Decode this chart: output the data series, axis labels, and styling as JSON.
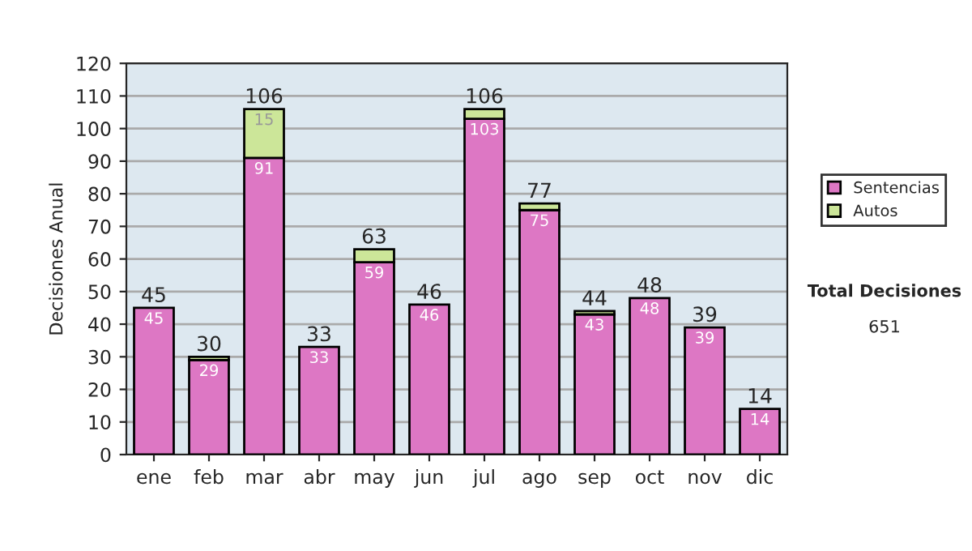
{
  "chart_data": {
    "type": "bar",
    "stacked": true,
    "ylabel": "Decisiones Anual",
    "categories": [
      "ene",
      "feb",
      "mar",
      "abr",
      "may",
      "jun",
      "jul",
      "ago",
      "sep",
      "oct",
      "nov",
      "dic"
    ],
    "series": [
      {
        "name": "Sentencias",
        "color": "#dd77c4",
        "values": [
          45,
          29,
          91,
          33,
          59,
          46,
          103,
          75,
          43,
          48,
          39,
          14
        ],
        "value_labels": [
          "45",
          "29",
          "91",
          "33",
          "59",
          "46",
          "103",
          "75",
          "43",
          "48",
          "39",
          "14"
        ]
      },
      {
        "name": "Autos",
        "color": "#cce699",
        "values": [
          null,
          1,
          15,
          null,
          4,
          null,
          3,
          2,
          1,
          null,
          null,
          null
        ],
        "value_labels": [
          null,
          null,
          "15",
          null,
          null,
          null,
          null,
          null,
          null,
          null,
          null,
          null
        ]
      }
    ],
    "totals": [
      "45",
      "30",
      "106",
      "33",
      "63",
      "46",
      "106",
      "77",
      "44",
      "48",
      "39",
      "14"
    ],
    "ylim": [
      0,
      120
    ],
    "yticks": [
      0,
      10,
      20,
      30,
      40,
      50,
      60,
      70,
      80,
      90,
      100,
      110,
      120
    ],
    "grid": "y",
    "legend": "right",
    "annotations": [
      "Total Decisiones",
      "651"
    ]
  }
}
